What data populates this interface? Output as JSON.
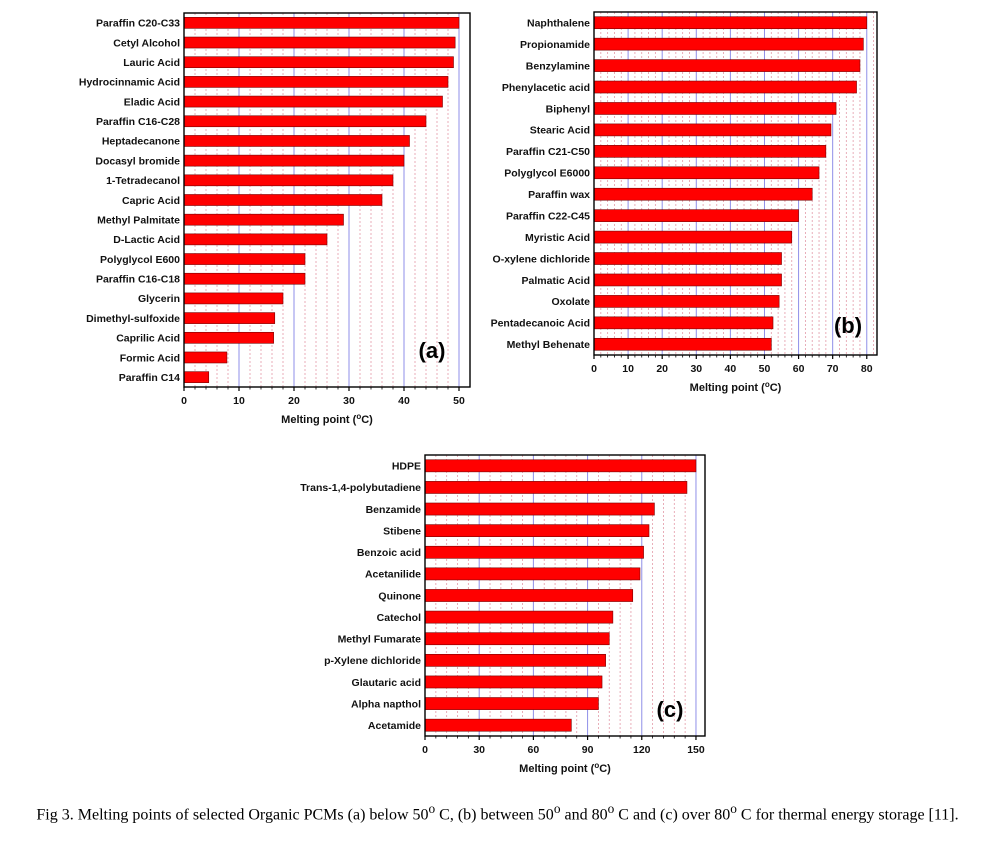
{
  "chart_data": [
    {
      "type": "bar",
      "orientation": "horizontal",
      "panel_label": "(a)",
      "xlabel_main": "Melting point (",
      "xlabel_sup": "o",
      "xlabel_end": "C)",
      "xlim": [
        0,
        52
      ],
      "xticks": [
        0,
        10,
        20,
        30,
        40,
        50
      ],
      "grid": true,
      "bar_color": "#ff0000",
      "categories": [
        "Paraffin C20-C33",
        "Cetyl Alcohol",
        "Lauric Acid",
        "Hydrocinnamic Acid",
        "Eladic Acid",
        "Paraffin C16-C28",
        "Heptadecanone",
        "Docasyl bromide",
        "1-Tetradecanol",
        "Capric Acid",
        "Methyl Palmitate",
        "D-Lactic Acid",
        "Polyglycol E600",
        "Paraffin C16-C18",
        "Glycerin",
        "Dimethyl-sulfoxide",
        "Caprilic Acid",
        "Formic Acid",
        "Paraffin C14"
      ],
      "values": [
        50,
        49.3,
        49,
        48,
        47,
        44,
        41,
        40,
        38,
        36,
        29,
        26,
        22,
        22,
        18,
        16.5,
        16.3,
        7.8,
        4.5
      ]
    },
    {
      "type": "bar",
      "orientation": "horizontal",
      "panel_label": "(b)",
      "xlabel_main": "Melting point (",
      "xlabel_sup": "o",
      "xlabel_end": "C)",
      "xlim": [
        0,
        83
      ],
      "xticks": [
        0,
        10,
        20,
        30,
        40,
        50,
        60,
        70,
        80
      ],
      "grid": true,
      "bar_color": "#ff0000",
      "categories": [
        "Naphthalene",
        "Propionamide",
        "Benzylamine",
        "Phenylacetic acid",
        "Biphenyl",
        "Stearic Acid",
        "Paraffin C21-C50",
        "Polyglycol E6000",
        "Paraffin wax",
        "Paraffin C22-C45",
        "Myristic Acid",
        "O-xylene dichloride",
        "Palmatic Acid",
        "Oxolate",
        "Pentadecanoic Acid",
        "Methyl Behenate"
      ],
      "values": [
        80,
        79,
        78,
        77,
        71,
        69.5,
        68,
        66,
        64,
        60,
        58,
        55,
        55,
        54.3,
        52.5,
        52
      ]
    },
    {
      "type": "bar",
      "orientation": "horizontal",
      "panel_label": "(c)",
      "xlabel_main": "Melting point (",
      "xlabel_sup": "o",
      "xlabel_end": "C)",
      "xlim": [
        0,
        155
      ],
      "xticks": [
        0,
        30,
        60,
        90,
        120,
        150
      ],
      "grid": true,
      "bar_color": "#ff0000",
      "categories": [
        "HDPE",
        "Trans-1,4-polybutadiene",
        "Benzamide",
        "Stibene",
        "Benzoic acid",
        "Acetanilide",
        "Quinone",
        "Catechol",
        "Methyl Fumarate",
        "p-Xylene dichloride",
        "Glautaric acid",
        "Alpha napthol",
        "Acetamide"
      ],
      "values": [
        150,
        145,
        127,
        124,
        121,
        119,
        115,
        104,
        102,
        100,
        98,
        96,
        81
      ]
    }
  ],
  "caption": {
    "p1": "Fig 3. Melting points of selected Organic PCMs (a) below 50",
    "s1": "o",
    "p2": " C, (b) between 50",
    "s2": "o",
    "p3": " and 80",
    "s3": "o",
    "p4": " C and (c) over 80",
    "s4": "o",
    "p5": " C for thermal energy storage [11]."
  }
}
